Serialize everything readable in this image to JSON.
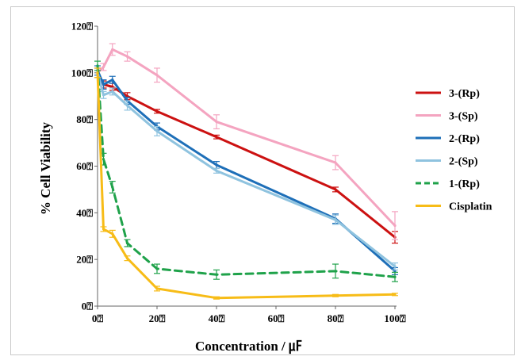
{
  "chart_data": {
    "type": "line",
    "title": "",
    "xlabel": "Concentration / ㎌",
    "ylabel": "% Cell Viability",
    "x": [
      0,
      2,
      5,
      10,
      20,
      40,
      80,
      100
    ],
    "xticks": [
      {
        "value": 0,
        "label": "0⍰"
      },
      {
        "value": 20,
        "label": "20⍰"
      },
      {
        "value": 40,
        "label": "40⍰"
      },
      {
        "value": 60,
        "label": "60⍰"
      },
      {
        "value": 80,
        "label": "80⍰"
      },
      {
        "value": 100,
        "label": "100⍰"
      }
    ],
    "yticks": [
      {
        "value": 0,
        "label": "0⍰"
      },
      {
        "value": 20,
        "label": "20⍰"
      },
      {
        "value": 40,
        "label": "40⍰"
      },
      {
        "value": 60,
        "label": "60⍰"
      },
      {
        "value": 80,
        "label": "80⍰"
      },
      {
        "value": 100,
        "label": "100⍰"
      },
      {
        "value": 120,
        "label": "120⍰"
      }
    ],
    "xlim": [
      0,
      100
    ],
    "ylim": [
      0,
      120
    ],
    "grid": false,
    "legend_position": "right",
    "series": [
      {
        "name": "3-(Rp)",
        "color": "#cc1111",
        "dash": "solid",
        "values": [
          100,
          95,
          94,
          90,
          83.5,
          72.5,
          50,
          29.5
        ],
        "errors": [
          2,
          1.5,
          1.5,
          1.5,
          0.8,
          0.8,
          1,
          2.5
        ]
      },
      {
        "name": "3-(Sp)",
        "color": "#f4a4c0",
        "dash": "solid",
        "values": [
          100,
          102.5,
          110,
          107,
          99,
          79,
          61.5,
          34.5
        ],
        "errors": [
          2,
          1.5,
          2.5,
          2,
          3,
          3,
          3,
          6
        ]
      },
      {
        "name": "2-(Rp)",
        "color": "#1e6fb8",
        "dash": "solid",
        "values": [
          101,
          95,
          97,
          88,
          77,
          60.5,
          37.5,
          15
        ],
        "errors": [
          2,
          2,
          1.5,
          1.5,
          1.5,
          1.5,
          2,
          1.5
        ]
      },
      {
        "name": "2-(Sp)",
        "color": "#8fc3df",
        "dash": "solid",
        "values": [
          100,
          90.5,
          92,
          86,
          75,
          58,
          37,
          17
        ],
        "errors": [
          2,
          1.5,
          1.5,
          2,
          2,
          1,
          2,
          1.5
        ]
      },
      {
        "name": "1-(Rp)",
        "color": "#1fa24a",
        "dash": "dashed",
        "values": [
          103,
          63,
          51,
          27,
          16,
          13.5,
          15,
          12.5
        ],
        "errors": [
          2,
          2.5,
          2.5,
          1.5,
          2,
          2,
          3,
          2
        ]
      },
      {
        "name": "Cisplatin",
        "color": "#f7bc17",
        "dash": "solid",
        "values": [
          100,
          33,
          31,
          20.5,
          7.5,
          3.5,
          4.5,
          5
        ],
        "errors": [
          2,
          1,
          1.5,
          1,
          1,
          0.5,
          0.5,
          0.5
        ]
      }
    ]
  }
}
